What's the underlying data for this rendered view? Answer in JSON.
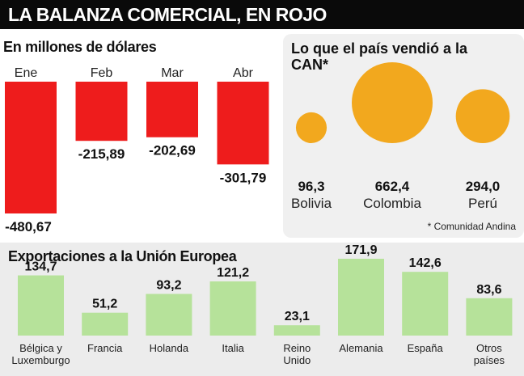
{
  "header": {
    "title": "LA BALANZA COMERCIAL, EN ROJO"
  },
  "colors": {
    "deficit": "#ee1c1c",
    "bubble": "#f2a81e",
    "export_bar": "#b6e29a"
  },
  "chart_data": [
    {
      "type": "bar",
      "title": "En millones de dólares",
      "categories": [
        "Ene",
        "Feb",
        "Mar",
        "Abr"
      ],
      "values": [
        -480.67,
        -215.89,
        -202.69,
        -301.79
      ],
      "value_labels": [
        "-480,67",
        "-215,89",
        "-202,69",
        "-301,79"
      ],
      "ylim": [
        -480.67,
        0
      ]
    },
    {
      "type": "scatter",
      "title": "Lo que el país vendió a la CAN*",
      "footnote": "* Comunidad Andina",
      "categories": [
        "Bolivia",
        "Colombia",
        "Perú"
      ],
      "values": [
        96.3,
        662.4,
        294.0
      ],
      "value_labels": [
        "96,3",
        "662,4",
        "294,0"
      ]
    },
    {
      "type": "bar",
      "title": "Exportaciones a  la Unión Europea",
      "categories": [
        [
          "Bélgica y",
          "Luxemburgo"
        ],
        [
          "Francia"
        ],
        [
          "Holanda"
        ],
        [
          "Italia"
        ],
        [
          "Reino",
          "Unido"
        ],
        [
          "Alemania"
        ],
        [
          "España"
        ],
        [
          "Otros",
          "países"
        ]
      ],
      "values": [
        134.7,
        51.2,
        93.2,
        121.2,
        23.1,
        171.9,
        142.6,
        83.6
      ],
      "value_labels": [
        "134,7",
        "51,2",
        "93,2",
        "121,2",
        "23,1",
        "171,9",
        "142,6",
        "83,6"
      ],
      "ylim": [
        0,
        171.9
      ]
    }
  ]
}
